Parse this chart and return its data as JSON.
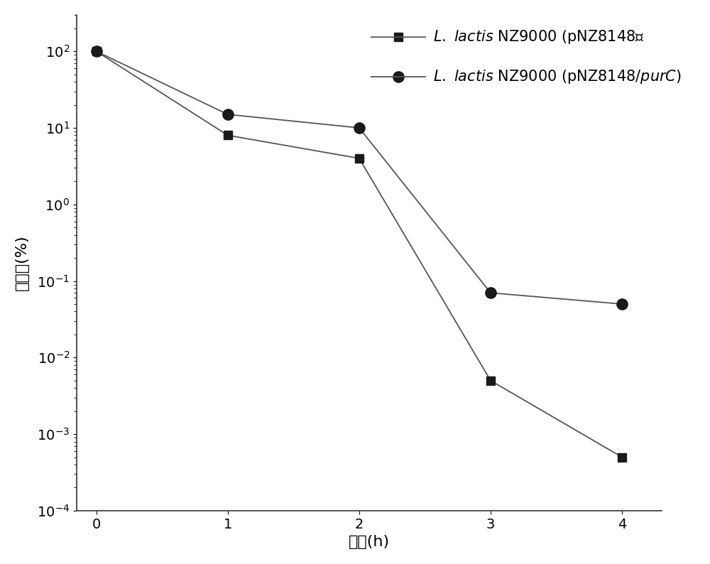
{
  "x": [
    0,
    1,
    2,
    3,
    4
  ],
  "y_square": [
    100,
    8,
    4,
    0.005,
    0.0005
  ],
  "y_circle": [
    100,
    15,
    10,
    0.07,
    0.05
  ],
  "color": "#1a1a1a",
  "line_color": "#555555",
  "ylabel": "存活率(%)",
  "xlabel": "时间(h)",
  "ylim_bottom": 0.0001,
  "ylim_top": 300,
  "xlim_left": -0.15,
  "xlim_right": 4.3,
  "xticks": [
    0,
    1,
    2,
    3,
    4
  ],
  "yticks": [
    0.0001,
    0.001,
    0.01,
    0.1,
    1.0,
    10.0,
    100.0
  ],
  "ytick_labels": [
    "$10^{-4}$",
    "$10^{-3}$",
    "$10^{-2}$",
    "$10^{-1}$",
    "$10^{0}$",
    "$10^{1}$",
    "$10^{2}$"
  ],
  "marker_size_square": 9,
  "marker_size_circle": 11,
  "linewidth": 1.3,
  "legend_fontsize": 15,
  "axis_label_fontsize": 16,
  "tick_fontsize": 14,
  "ylabel_fontsize": 16
}
